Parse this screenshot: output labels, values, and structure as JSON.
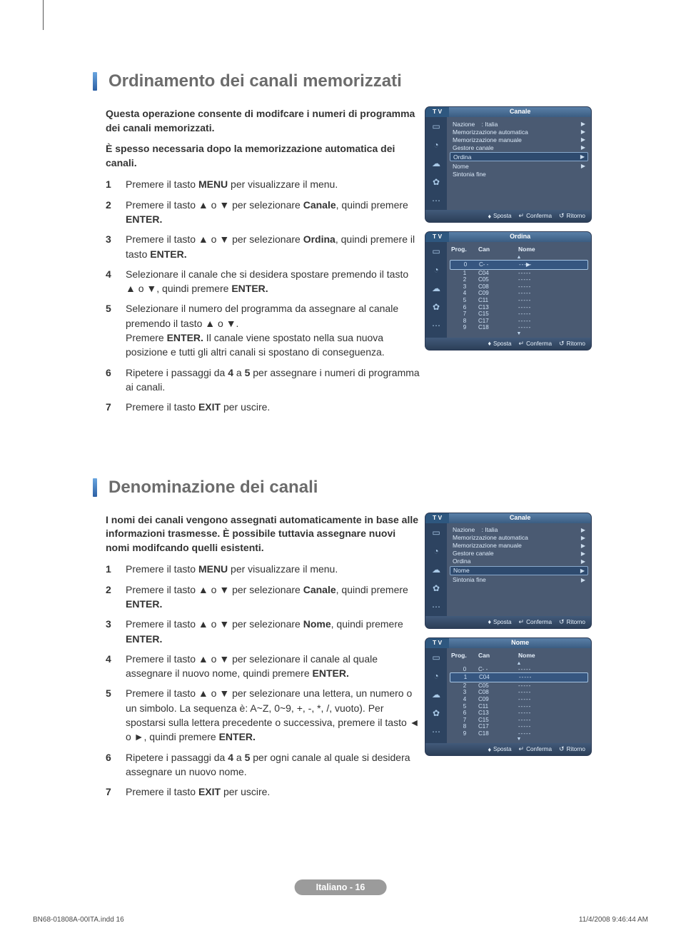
{
  "section1": {
    "title": "Ordinamento dei canali memorizzati",
    "intro1": "Questa operazione consente di modifcare i numeri di programma dei canali memorizzati.",
    "intro2": "È spesso necessaria dopo la memorizzazione automatica dei canali.",
    "steps": [
      "Premere il tasto <b>MENU</b> per visualizzare il menu.",
      "Premere il tasto ▲ o ▼ per selezionare <b>Canale</b>, quindi premere <b>ENTER.</b>",
      "Premere il tasto ▲ o ▼ per selezionare <b>Ordina</b>, quindi premere il tasto <b>ENTER.</b>",
      "Selezionare il canale che si desidera spostare premendo il tasto ▲ o ▼, quindi premere <b>ENTER.</b>",
      "Selezionare il numero del programma da assegnare al canale premendo il tasto ▲ o ▼.<br>Premere <b>ENTER.</b> Il canale viene spostato nella sua nuova posizione e tutti gli altri canali si spostano di conseguenza.",
      "Ripetere i passaggi da <b>4</b> a <b>5</b> per assegnare i numeri di programma ai canali.",
      "Premere il tasto <b>EXIT</b> per uscire."
    ]
  },
  "section2": {
    "title": "Denominazione dei canali",
    "intro1": "I nomi dei canali vengono assegnati automaticamente in base alle informazioni trasmesse. È possibile tuttavia assegnare nuovi nomi modifcando quelli esistenti.",
    "steps": [
      "Premere il tasto <b>MENU</b> per visualizzare il menu.",
      "Premere il tasto ▲ o ▼ per selezionare <b>Canale</b>, quindi premere <b>ENTER.</b>",
      "Premere il tasto ▲ o ▼ per selezionare <b>Nome</b>, quindi premere <b>ENTER.</b>",
      "Premere il tasto ▲ o ▼ per selezionare il canale al quale assegnare il nuovo nome, quindi premere <b>ENTER.</b>",
      "Premere il tasto ▲ o ▼ per selezionare una lettera, un numero o un simbolo. La sequenza è: A~Z, 0~9, +, -, *, /, vuoto). Per spostarsi sulla lettera precedente o successiva, premere il tasto ◄ o ►, quindi premere <b>ENTER.</b>",
      "Ripetere i passaggi da <b>4</b> a <b>5</b> per ogni canale al quale si desidera assegnare un nuovo nome.",
      "Premere il tasto <b>EXIT</b> per uscire."
    ]
  },
  "osd": {
    "common": {
      "tab": "T V",
      "footer": {
        "sposta": "Sposta",
        "conferma": "Conferma",
        "ritorno": "Ritorno"
      },
      "icons": [
        "▭",
        "◔",
        "☁",
        "✿",
        "⋯"
      ]
    },
    "canale": {
      "title": "Canale",
      "items": [
        {
          "label": "Nazione",
          "val": ": Italia",
          "sel": false,
          "arrow": true
        },
        {
          "label": "Memorizzazione automatica",
          "val": "",
          "sel": false,
          "arrow": true
        },
        {
          "label": "Memorizzazione manuale",
          "val": "",
          "sel": false,
          "arrow": true
        },
        {
          "label": "Gestore canale",
          "val": "",
          "sel": false,
          "arrow": true
        },
        {
          "label": "Ordina",
          "val": "",
          "sel": true,
          "arrow": true
        },
        {
          "label": "Nome",
          "val": "",
          "sel": false,
          "arrow": true
        },
        {
          "label": "Sintonia fine",
          "val": "",
          "sel": false,
          "arrow": false
        }
      ]
    },
    "canale_nome": {
      "title": "Canale",
      "items": [
        {
          "label": "Nazione",
          "val": ": Italia",
          "sel": false,
          "arrow": true
        },
        {
          "label": "Memorizzazione automatica",
          "val": "",
          "sel": false,
          "arrow": true
        },
        {
          "label": "Memorizzazione manuale",
          "val": "",
          "sel": false,
          "arrow": true
        },
        {
          "label": "Gestore canale",
          "val": "",
          "sel": false,
          "arrow": true
        },
        {
          "label": "Ordina",
          "val": "",
          "sel": false,
          "arrow": true
        },
        {
          "label": "Nome",
          "val": "",
          "sel": true,
          "arrow": true
        },
        {
          "label": "Sintonia fine",
          "val": "",
          "sel": false,
          "arrow": true
        }
      ]
    },
    "ordina": {
      "title": "Ordina",
      "head": {
        "c1": "Prog.",
        "c2": "Can",
        "c3": "Nome"
      },
      "selected_prog": 0,
      "sel_index": 0,
      "rows": [
        {
          "p": "0",
          "c": "C- -",
          "n": "-----"
        },
        {
          "p": "1",
          "c": "C04",
          "n": "-----"
        },
        {
          "p": "2",
          "c": "C05",
          "n": "-----"
        },
        {
          "p": "3",
          "c": "C08",
          "n": "-----"
        },
        {
          "p": "4",
          "c": "C09",
          "n": "-----"
        },
        {
          "p": "5",
          "c": "C11",
          "n": "-----"
        },
        {
          "p": "6",
          "c": "C13",
          "n": "-----"
        },
        {
          "p": "7",
          "c": "C15",
          "n": "-----"
        },
        {
          "p": "8",
          "c": "C17",
          "n": "-----"
        },
        {
          "p": "9",
          "c": "C18",
          "n": "-----"
        }
      ]
    },
    "nome": {
      "title": "Nome",
      "head": {
        "c1": "Prog.",
        "c2": "Can",
        "c3": "Nome"
      },
      "sel_index": 1,
      "rows": [
        {
          "p": "0",
          "c": "C- -",
          "n": "-----"
        },
        {
          "p": "1",
          "c": "C04",
          "n": "-----"
        },
        {
          "p": "2",
          "c": "C05",
          "n": "-----"
        },
        {
          "p": "3",
          "c": "C08",
          "n": "-----"
        },
        {
          "p": "4",
          "c": "C09",
          "n": "-----"
        },
        {
          "p": "5",
          "c": "C11",
          "n": "-----"
        },
        {
          "p": "6",
          "c": "C13",
          "n": "-----"
        },
        {
          "p": "7",
          "c": "C15",
          "n": "-----"
        },
        {
          "p": "8",
          "c": "C17",
          "n": "-----"
        },
        {
          "p": "9",
          "c": "C18",
          "n": "-----"
        }
      ]
    }
  },
  "pageLabel": "Italiano - 16",
  "footerLeft": "BN68-01808A-00ITA.indd   16",
  "footerRight": "11/4/2008   9:46:44 AM"
}
